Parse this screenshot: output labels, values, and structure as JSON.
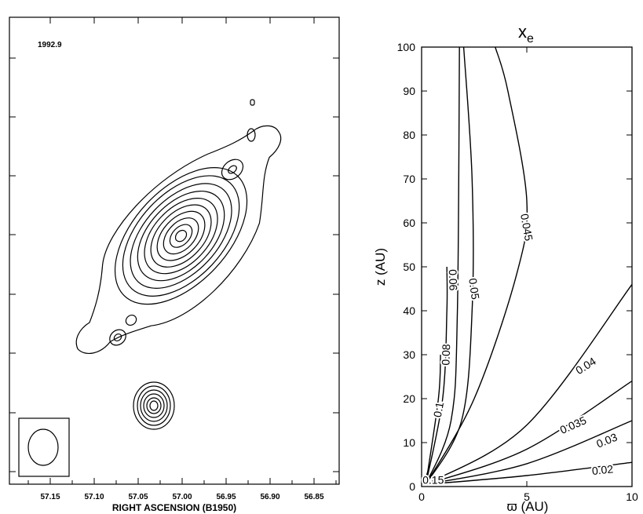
{
  "chart_data": [
    {
      "type": "contour",
      "epoch_label": "1992.9",
      "xlabel": "RIGHT ASCENSION (B1950)",
      "ylabel": "",
      "x_ticks": [
        "57.15",
        "57.10",
        "57.05",
        "57.00",
        "56.95",
        "56.90",
        "56.85"
      ],
      "x_range": [
        57.18,
        56.84
      ],
      "components": [
        {
          "ra": 57.02,
          "levels": 11,
          "shape": "elongated jet, position angle ~45 deg"
        },
        {
          "ra": 57.05,
          "levels": 6,
          "shape": "compact knot"
        },
        {
          "ra": 56.95,
          "levels": 1,
          "shape": "small knot"
        },
        {
          "ra": 56.95,
          "levels": 1,
          "shape": "faint knot"
        },
        {
          "ra": 57.08,
          "levels": 2,
          "shape": "faint knot"
        },
        {
          "ra": 57.06,
          "levels": 1,
          "shape": "faint knot"
        }
      ],
      "beam": "ellipse in lower-left box"
    },
    {
      "type": "contour",
      "title": "x",
      "title_sub": "e",
      "xlabel": "ϖ (AU)",
      "ylabel": "z (AU)",
      "xlim": [
        0,
        10
      ],
      "ylim": [
        0,
        100
      ],
      "x_ticks": [
        "0",
        "5",
        "10"
      ],
      "y_ticks": [
        "0",
        "10",
        "20",
        "30",
        "40",
        "50",
        "60",
        "70",
        "80",
        "90",
        "100"
      ],
      "grid": false,
      "contours": [
        {
          "level": "0.02",
          "points": [
            [
              0.2,
              0.5
            ],
            [
              5,
              2.5
            ],
            [
              10,
              5.5
            ]
          ]
        },
        {
          "level": "0.03",
          "points": [
            [
              0.2,
              0.5
            ],
            [
              5,
              5.2
            ],
            [
              10,
              15
            ]
          ]
        },
        {
          "level": "0.035",
          "points": [
            [
              0.2,
              0.5
            ],
            [
              5,
              8.5
            ],
            [
              10,
              24
            ]
          ]
        },
        {
          "level": "0.04",
          "points": [
            [
              0.2,
              0.5
            ],
            [
              5,
              14
            ],
            [
              10,
              46
            ]
          ]
        },
        {
          "level": "0.045",
          "points": [
            [
              0.2,
              0.5
            ],
            [
              2.5,
              20
            ],
            [
              4.5,
              48
            ],
            [
              5,
              65
            ],
            [
              4.1,
              90
            ],
            [
              3.5,
              100
            ]
          ]
        },
        {
          "level": "0.05",
          "points": [
            [
              0.2,
              0.5
            ],
            [
              1.9,
              15
            ],
            [
              2.4,
              40
            ],
            [
              2.4,
              70
            ],
            [
              2.0,
              100
            ]
          ]
        },
        {
          "level": "0.06",
          "points": [
            [
              0.2,
              0.5
            ],
            [
              1.4,
              15
            ],
            [
              1.7,
              40
            ],
            [
              1.8,
              100
            ]
          ]
        },
        {
          "level": "0.08",
          "points": [
            [
              0.2,
              0.5
            ],
            [
              1.0,
              20
            ],
            [
              1.2,
              40
            ],
            [
              1.2,
              50
            ]
          ]
        },
        {
          "level": "0.1",
          "points": [
            [
              0.2,
              0.5
            ],
            [
              0.8,
              20
            ],
            [
              0.9,
              30
            ]
          ]
        },
        {
          "level": "0.15",
          "points": [
            [
              0.1,
              0.5
            ],
            [
              0.4,
              5
            ]
          ]
        }
      ]
    }
  ]
}
